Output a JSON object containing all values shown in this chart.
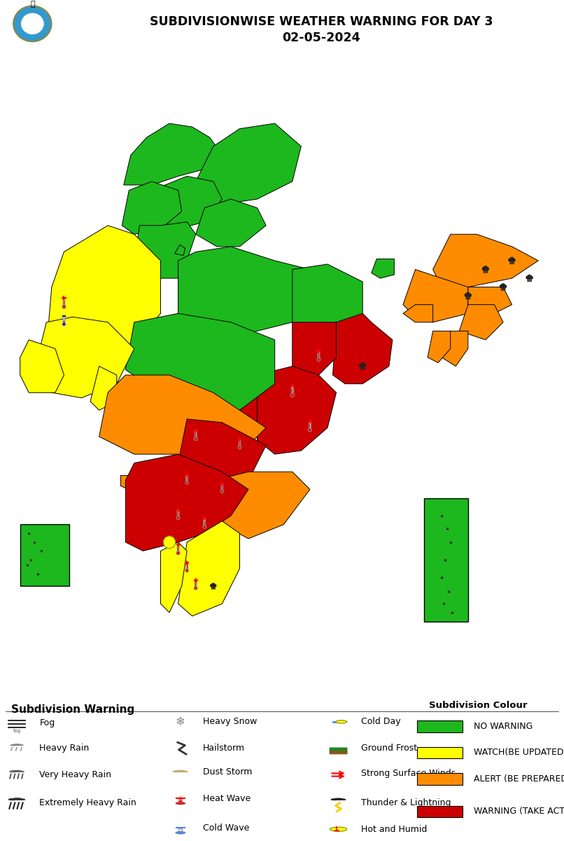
{
  "title_line1": "SUBDIVISIONWISE WEATHER WARNING FOR DAY 3",
  "title_line2": "02-05-2024",
  "bg_color": "#ffffff",
  "colors": {
    "NO_WARNING": "#1db81d",
    "WATCH": "#ffff00",
    "ALERT": "#ff8c00",
    "WARNING": "#cc0000"
  },
  "legend_colors": {
    "NO WARNING": "#1db81d",
    "WATCH(BE UPDATED)": "#ffff00",
    "ALERT (BE PREPARED)": "#ff8c00",
    "WARNING (TAKE ACTION)": "#cc0000"
  },
  "state_colors": {
    "Jammu & Kashmir": "NO_WARNING",
    "Ladakh": "NO_WARNING",
    "Himachal Pradesh": "NO_WARNING",
    "Uttarakhand": "NO_WARNING",
    "Punjab": "NO_WARNING",
    "Haryana": "NO_WARNING",
    "Delhi": "NO_WARNING",
    "Rajasthan": "WATCH",
    "Uttar Pradesh": "NO_WARNING",
    "Bihar": "NO_WARNING",
    "West Bengal": "WARNING",
    "Sikkim": "NO_WARNING",
    "Arunachal Pradesh": "ALERT",
    "Assam": "ALERT",
    "Meghalaya": "ALERT",
    "Nagaland": "ALERT",
    "Manipur": "ALERT",
    "Mizoram": "ALERT",
    "Tripura": "ALERT",
    "Odisha": "WARNING",
    "Jharkhand": "WARNING",
    "Chhattisgarh": "WARNING",
    "Madhya Pradesh": "NO_WARNING",
    "Gujarat": "WATCH",
    "Maharashtra": "ALERT",
    "Goa": "ALERT",
    "Karnataka": "WARNING",
    "Andhra Pradesh": "ALERT",
    "Telangana": "WARNING",
    "Tamil Nadu": "WATCH",
    "Kerala": "WATCH",
    "Lakshadweep": "NO_WARNING",
    "Andaman & Nicobar": "NO_WARNING"
  },
  "map_xlim": [
    67.5,
    98.0
  ],
  "map_ylim": [
    6.5,
    38.5
  ]
}
